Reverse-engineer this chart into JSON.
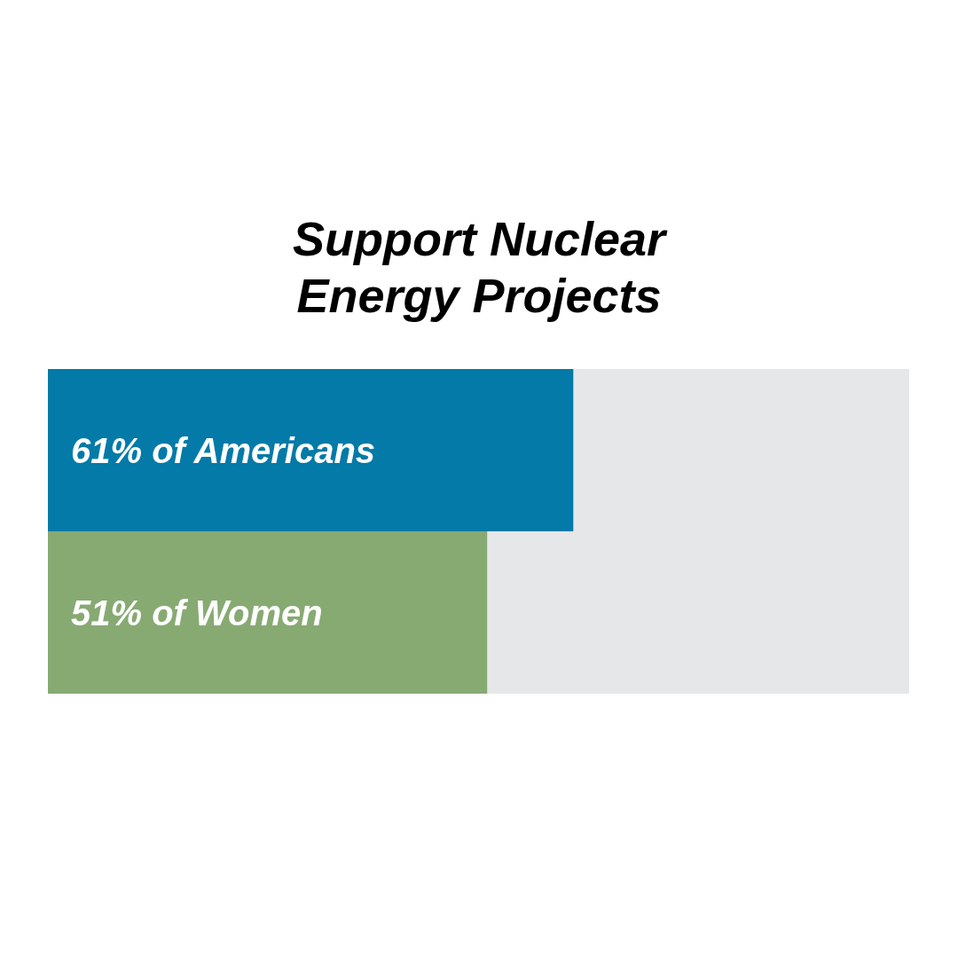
{
  "chart_data": {
    "type": "bar",
    "orientation": "horizontal",
    "title": "Support Nuclear Energy Projects",
    "categories": [
      null,
      null
    ],
    "values": [
      61,
      51
    ],
    "colors": [
      "#037aa8",
      "#87aa73"
    ],
    "value_labels": [
      "61% of Americans",
      "51% of Women"
    ],
    "xlim": [
      0,
      100
    ]
  }
}
